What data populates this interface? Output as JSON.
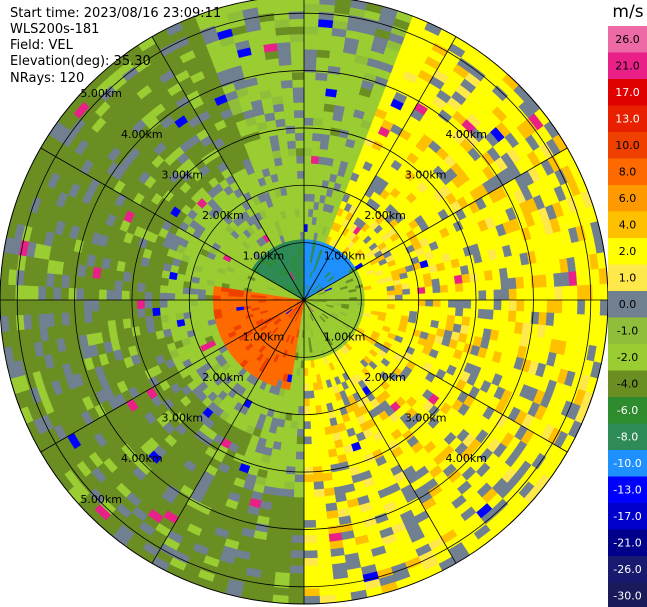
{
  "header": {
    "start_time": "Start time: 2023/08/16 23:09:11",
    "instrument": "WLS200s-181",
    "field": "Field: VEL",
    "elevation": "Elevation(deg): 35.30",
    "nrays": "NRays: 120"
  },
  "colorbar": {
    "unit": "m/s",
    "ticks": [
      "26.0",
      "21.0",
      "17.0",
      "13.0",
      "10.0",
      "8.0",
      "6.0",
      "4.0",
      "2.0",
      "1.0",
      "0.0",
      "-1.0",
      "-2.0",
      "-4.0",
      "-6.0",
      "-8.0",
      "-10.0",
      "-13.0",
      "-17.0",
      "-21.0",
      "-26.0",
      "-30.0"
    ],
    "colors": [
      "#ee6aa7",
      "#e82088",
      "#e00000",
      "#e82000",
      "#f04000",
      "#ff6a00",
      "#ff9900",
      "#ffc000",
      "#ffff00",
      "#ffe84a",
      "#708090",
      "#8fbf3a",
      "#9acd32",
      "#6b8e23",
      "#2e8b2e",
      "#2e8b57",
      "#1e90ff",
      "#0000ff",
      "#0000cd",
      "#00008b",
      "#191970",
      "#1a1a5a"
    ]
  },
  "chart_data": {
    "type": "heatmap",
    "projection": "polar (PPI scan)",
    "field": "VEL",
    "elevation_deg": 35.3,
    "nrays": 120,
    "range_rings_km": [
      1,
      2,
      3,
      4,
      5
    ],
    "range_labels": [
      "1.00km",
      "2.00km",
      "3.00km",
      "4.00km",
      "5.00km"
    ],
    "max_range_km": 5.3,
    "spokes_deg": [
      0,
      30,
      60,
      90,
      120,
      150,
      180,
      210,
      240,
      270,
      300,
      330
    ],
    "velocity_sectors": [
      {
        "from_deg": 300,
        "to_deg": 360,
        "range_km": [
          0,
          1.0
        ],
        "value": -8
      },
      {
        "from_deg": 0,
        "to_deg": 60,
        "range_km": [
          0,
          1.0
        ],
        "value": -10
      },
      {
        "from_deg": 20,
        "to_deg": 180,
        "range_km": [
          1.0,
          5.3
        ],
        "value": 2
      },
      {
        "from_deg": 190,
        "to_deg": 280,
        "range_km": [
          0,
          1.6
        ],
        "value": 8
      },
      {
        "from_deg": 200,
        "to_deg": 340,
        "range_km": [
          2.5,
          5.3
        ],
        "value": -4
      },
      {
        "from_deg": 300,
        "to_deg": 20,
        "range_km": [
          1.0,
          2.5
        ],
        "value": -2
      },
      {
        "from_deg": 180,
        "to_deg": 260,
        "range_km": [
          3.5,
          5.3
        ],
        "value": -4
      }
    ]
  }
}
